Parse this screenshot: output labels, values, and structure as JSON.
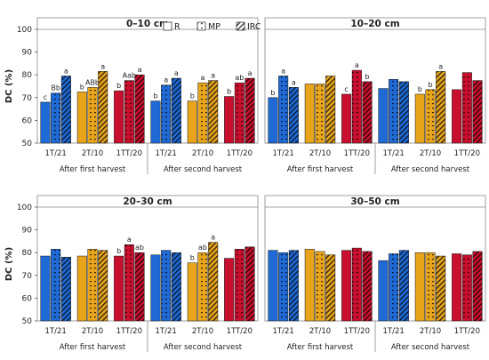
{
  "legend": {
    "entries": [
      {
        "label": "R",
        "pattern": "solid"
      },
      {
        "label": "MP",
        "pattern": "dots"
      },
      {
        "label": "IRC",
        "pattern": "hatch"
      }
    ]
  },
  "colors": {
    "1T/21": "#1f6ad4",
    "2T/10": "#e8a51c",
    "1TT/20": "#c8102e",
    "2T/10_dark": "#9a6a00"
  },
  "chart_data": [
    {
      "type": "bar",
      "title": "0–10 cm",
      "ylabel": "DC (%)",
      "ylim": [
        50,
        100
      ],
      "yticks": [
        50,
        60,
        70,
        80,
        90,
        100
      ],
      "group_labels": [
        "After first harvest",
        "After second harvest"
      ],
      "categories": [
        "1T/21",
        "2T/10",
        "1TT/20"
      ],
      "series": [
        {
          "name": "R",
          "values": [
            [
              68,
              72.5,
              73
            ],
            [
              68.5,
              68.5,
              70.5
            ]
          ],
          "labels": [
            [
              "c",
              "b",
              "b"
            ],
            [
              "b",
              "b",
              "b"
            ]
          ]
        },
        {
          "name": "MP",
          "values": [
            [
              72,
              74.5,
              77.5
            ],
            [
              75.5,
              76.5,
              76.5
            ]
          ],
          "labels": [
            [
              "Bb",
              "ABb",
              "Aab"
            ],
            [
              "a",
              "a",
              "ab"
            ]
          ]
        },
        {
          "name": "IRC",
          "values": [
            [
              79.5,
              81.5,
              80
            ],
            [
              78.5,
              77.5,
              78.5
            ]
          ],
          "labels": [
            [
              "a",
              "a",
              "a"
            ],
            [
              "a",
              "a",
              "a"
            ]
          ]
        }
      ]
    },
    {
      "type": "bar",
      "title": "10–20 cm",
      "ylim": [
        50,
        100
      ],
      "yticks": [
        50,
        60,
        70,
        80,
        90,
        100
      ],
      "group_labels": [
        "After first harvest",
        "After second harvest"
      ],
      "categories": [
        "1T/21",
        "2T/10",
        "1TT/20"
      ],
      "series": [
        {
          "name": "R",
          "values": [
            [
              70,
              76,
              71.5
            ],
            [
              74,
              71.5,
              73.5
            ]
          ],
          "labels": [
            [
              "b",
              "",
              "c"
            ],
            [
              "",
              "b",
              ""
            ]
          ]
        },
        {
          "name": "MP",
          "values": [
            [
              79.5,
              76,
              82
            ],
            [
              78,
              73.5,
              81
            ]
          ],
          "labels": [
            [
              "a",
              "",
              "a"
            ],
            [
              "",
              "b",
              ""
            ]
          ]
        },
        {
          "name": "IRC",
          "values": [
            [
              74.5,
              79.5,
              77
            ],
            [
              77,
              81.5,
              77.5
            ]
          ],
          "labels": [
            [
              "a",
              "",
              "b"
            ],
            [
              "",
              "a",
              ""
            ]
          ]
        }
      ]
    },
    {
      "type": "bar",
      "title": "20–30 cm",
      "ylabel": "DC (%)",
      "ylim": [
        50,
        100
      ],
      "yticks": [
        50,
        60,
        70,
        80,
        90,
        100
      ],
      "group_labels": [
        "After first harvest",
        "After second harvest"
      ],
      "categories": [
        "1T/21",
        "2T/10",
        "1TT/20"
      ],
      "series": [
        {
          "name": "R",
          "values": [
            [
              78.5,
              78.5,
              78.5
            ],
            [
              79,
              75.5,
              77.5
            ]
          ],
          "labels": [
            [
              "",
              "",
              "b"
            ],
            [
              "",
              "b",
              ""
            ]
          ]
        },
        {
          "name": "MP",
          "values": [
            [
              81.5,
              81.5,
              83.5
            ],
            [
              81,
              80,
              81.5
            ]
          ],
          "labels": [
            [
              "",
              "",
              "a"
            ],
            [
              "",
              "ab",
              ""
            ]
          ]
        },
        {
          "name": "IRC",
          "values": [
            [
              78,
              81,
              80
            ],
            [
              80,
              84.5,
              82.5
            ]
          ],
          "labels": [
            [
              "",
              "",
              "ab"
            ],
            [
              "",
              "a",
              ""
            ]
          ]
        }
      ]
    },
    {
      "type": "bar",
      "title": "30–50 cm",
      "ylim": [
        50,
        100
      ],
      "yticks": [
        50,
        60,
        70,
        80,
        90,
        100
      ],
      "group_labels": [
        "After first harvest",
        "After second harvest"
      ],
      "categories": [
        "1T/21",
        "2T/10",
        "1TT/20"
      ],
      "series": [
        {
          "name": "R",
          "values": [
            [
              81,
              81.5,
              81
            ],
            [
              76.5,
              80,
              79.5
            ]
          ],
          "labels": [
            [
              "",
              "",
              ""
            ],
            [
              "",
              "",
              ""
            ]
          ]
        },
        {
          "name": "MP",
          "values": [
            [
              80,
              80.5,
              82
            ],
            [
              79.5,
              80,
              79
            ]
          ],
          "labels": [
            [
              "",
              "",
              ""
            ],
            [
              "",
              "",
              ""
            ]
          ]
        },
        {
          "name": "IRC",
          "values": [
            [
              81,
              79,
              80.5
            ],
            [
              81,
              78.5,
              80.5
            ]
          ],
          "labels": [
            [
              "",
              "",
              ""
            ],
            [
              "",
              "",
              ""
            ]
          ]
        }
      ]
    }
  ]
}
